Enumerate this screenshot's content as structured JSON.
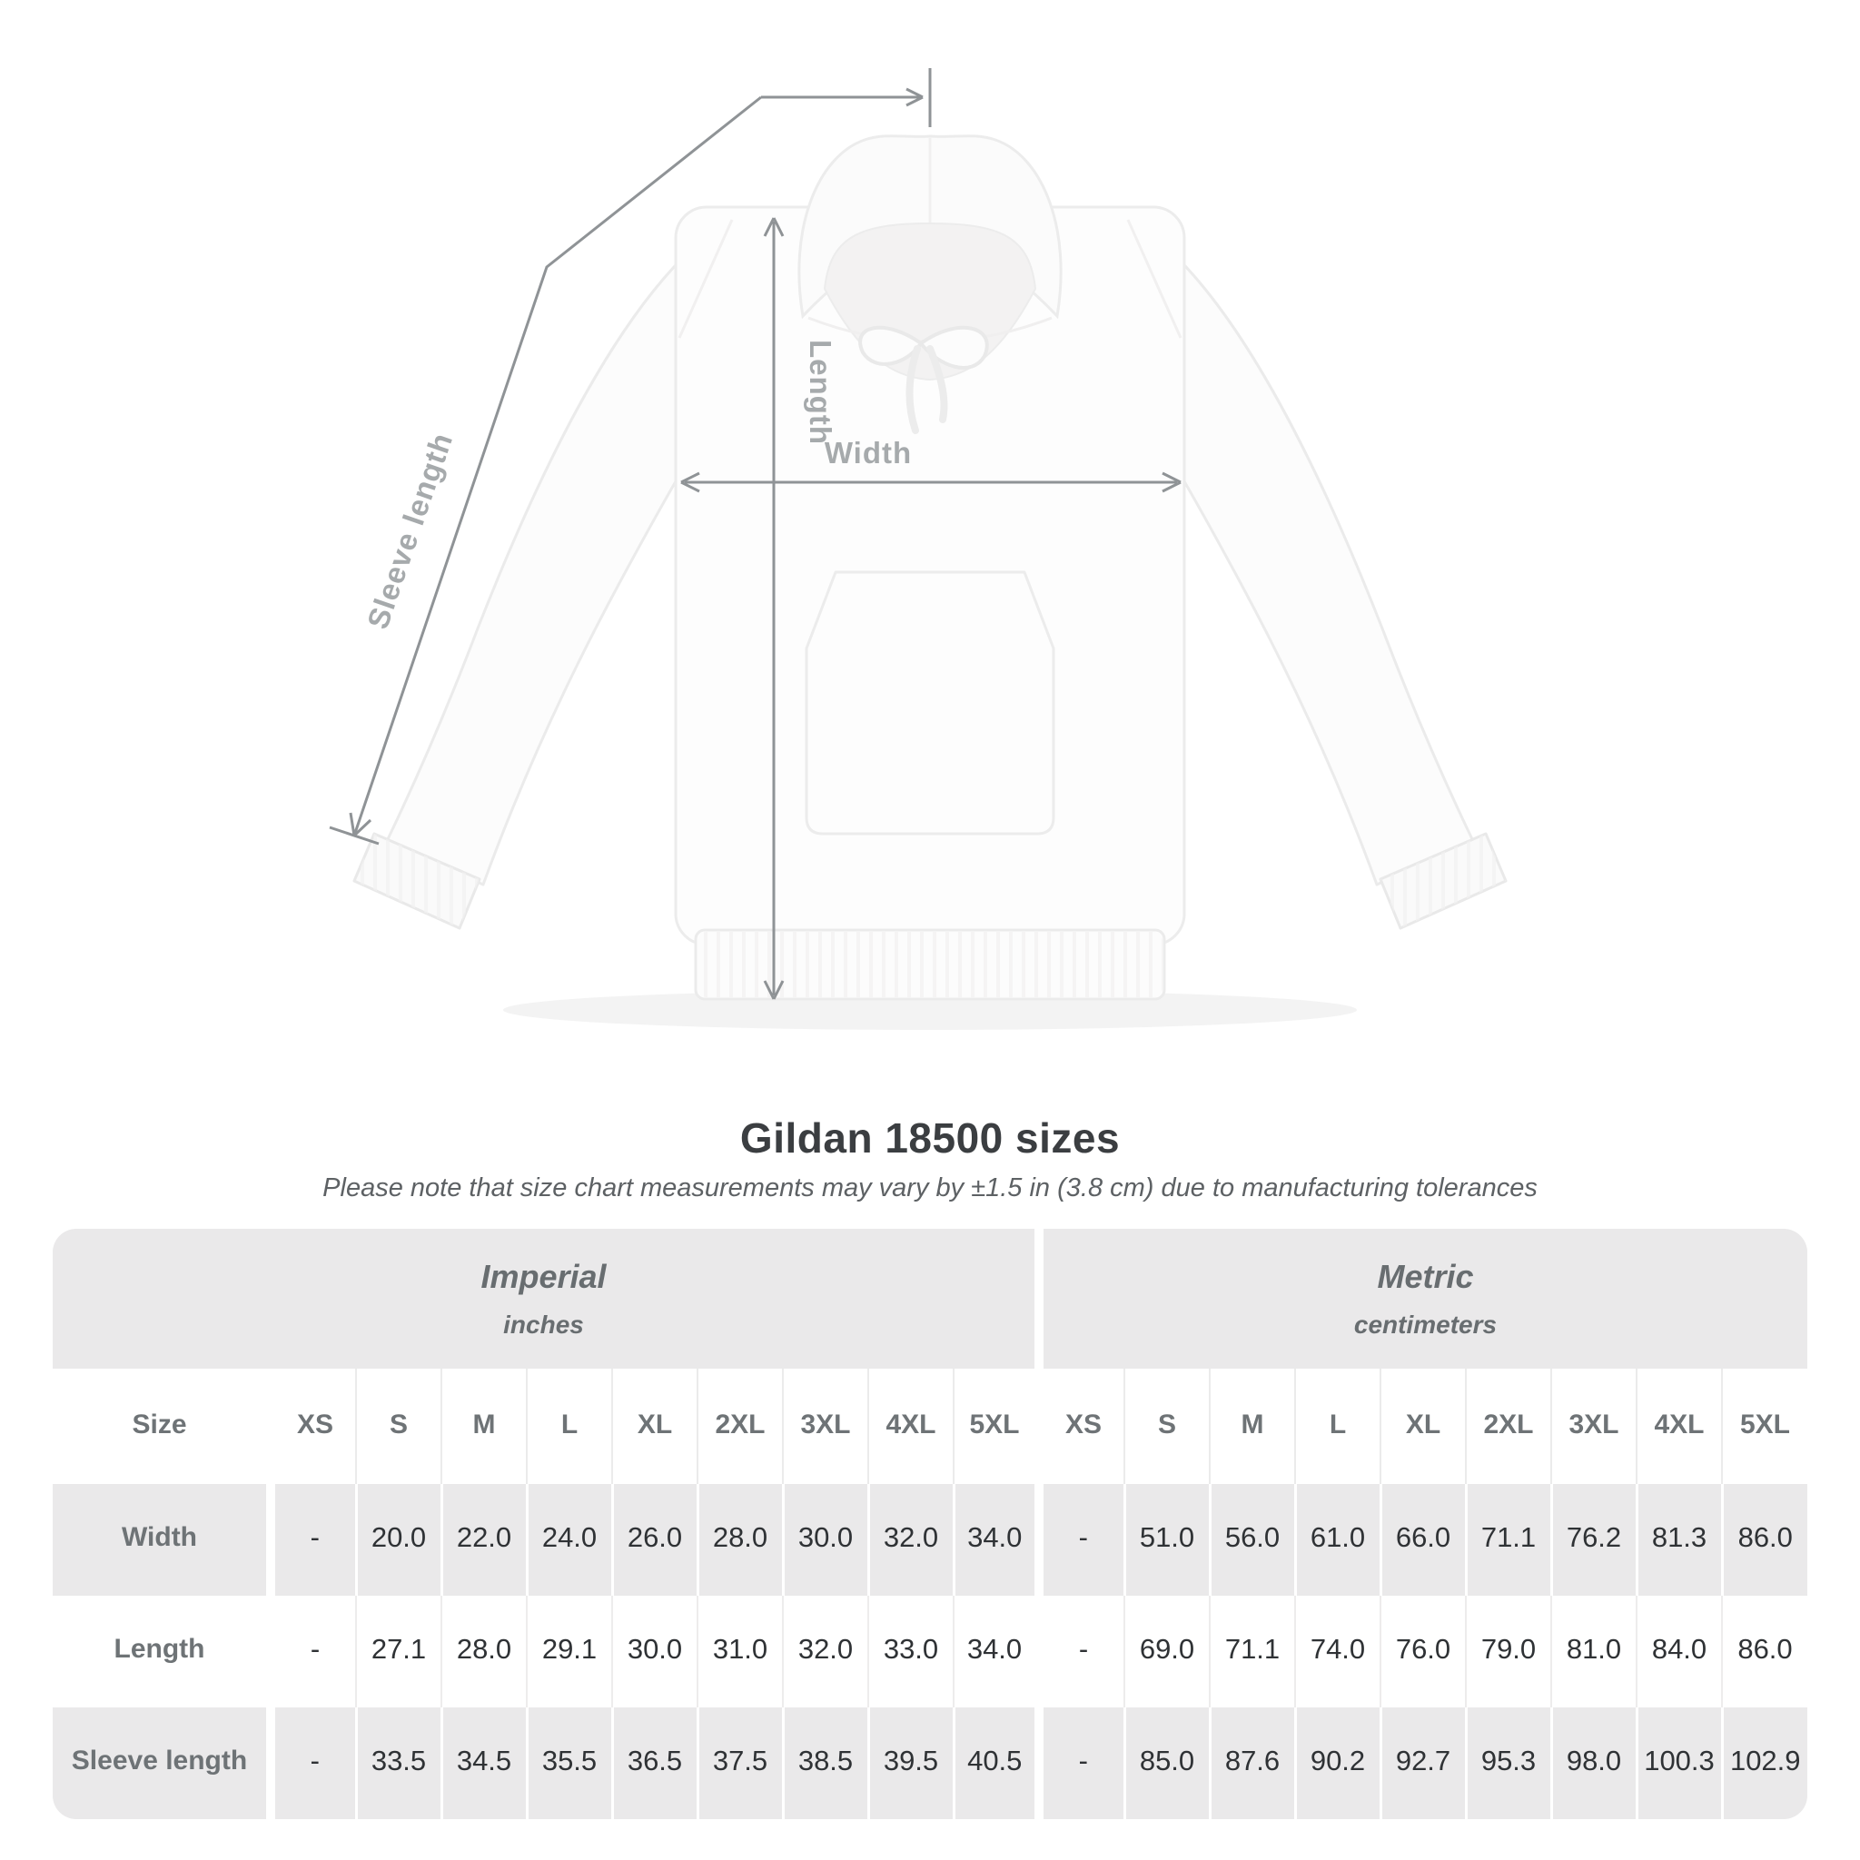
{
  "figure": {
    "length_label": "Length",
    "width_label": "Width",
    "sleeve_label": "Sleeve length"
  },
  "heading": {
    "title": "Gildan 18500 sizes",
    "subtitle": "Please note that size chart measurements may vary by ±1.5 in (3.8 cm) due to manufacturing tolerances"
  },
  "table": {
    "size_header": "Size",
    "groups": [
      {
        "name": "Imperial",
        "unit": "inches"
      },
      {
        "name": "Metric",
        "unit": "centimeters"
      }
    ],
    "sizes": [
      "XS",
      "S",
      "M",
      "L",
      "XL",
      "2XL",
      "3XL",
      "4XL",
      "5XL"
    ],
    "rows": [
      {
        "label": "Width",
        "imperial": [
          "-",
          "20.0",
          "22.0",
          "24.0",
          "26.0",
          "28.0",
          "30.0",
          "32.0",
          "34.0"
        ],
        "metric": [
          "-",
          "51.0",
          "56.0",
          "61.0",
          "66.0",
          "71.1",
          "76.2",
          "81.3",
          "86.0"
        ]
      },
      {
        "label": "Length",
        "imperial": [
          "-",
          "27.1",
          "28.0",
          "29.1",
          "30.0",
          "31.0",
          "32.0",
          "33.0",
          "34.0"
        ],
        "metric": [
          "-",
          "69.0",
          "71.1",
          "74.0",
          "76.0",
          "79.0",
          "81.0",
          "84.0",
          "86.0"
        ]
      },
      {
        "label": "Sleeve length",
        "imperial": [
          "-",
          "33.5",
          "34.5",
          "35.5",
          "36.5",
          "37.5",
          "38.5",
          "39.5",
          "40.5"
        ],
        "metric": [
          "-",
          "85.0",
          "87.6",
          "90.2",
          "92.7",
          "95.3",
          "98.0",
          "100.3",
          "102.9"
        ]
      }
    ]
  },
  "chart_data": {
    "type": "table",
    "title": "Gildan 18500 sizes",
    "note": "Measurements may vary by ±1.5 in (3.8 cm) due to manufacturing tolerances",
    "units": {
      "imperial": "inches",
      "metric": "centimeters"
    },
    "sizes": [
      "XS",
      "S",
      "M",
      "L",
      "XL",
      "2XL",
      "3XL",
      "4XL",
      "5XL"
    ],
    "measurements": [
      {
        "label": "Width",
        "imperial_in": [
          null,
          20.0,
          22.0,
          24.0,
          26.0,
          28.0,
          30.0,
          32.0,
          34.0
        ],
        "metric_cm": [
          null,
          51.0,
          56.0,
          61.0,
          66.0,
          71.1,
          76.2,
          81.3,
          86.0
        ]
      },
      {
        "label": "Length",
        "imperial_in": [
          null,
          27.1,
          28.0,
          29.1,
          30.0,
          31.0,
          32.0,
          33.0,
          34.0
        ],
        "metric_cm": [
          null,
          69.0,
          71.1,
          74.0,
          76.0,
          79.0,
          81.0,
          84.0,
          86.0
        ]
      },
      {
        "label": "Sleeve length",
        "imperial_in": [
          null,
          33.5,
          34.5,
          35.5,
          36.5,
          37.5,
          38.5,
          39.5,
          40.5
        ],
        "metric_cm": [
          null,
          85.0,
          87.6,
          90.2,
          92.7,
          95.3,
          98.0,
          100.3,
          102.9
        ]
      }
    ]
  },
  "colors": {
    "band_gray": "#eae9ea",
    "row_gray": "#eae9ea",
    "measure_line": "#8f9396",
    "measure_label": "#a6aaac",
    "header_text": "#6e7376",
    "value_text": "#2f3235",
    "title_text": "#3b3e41"
  }
}
